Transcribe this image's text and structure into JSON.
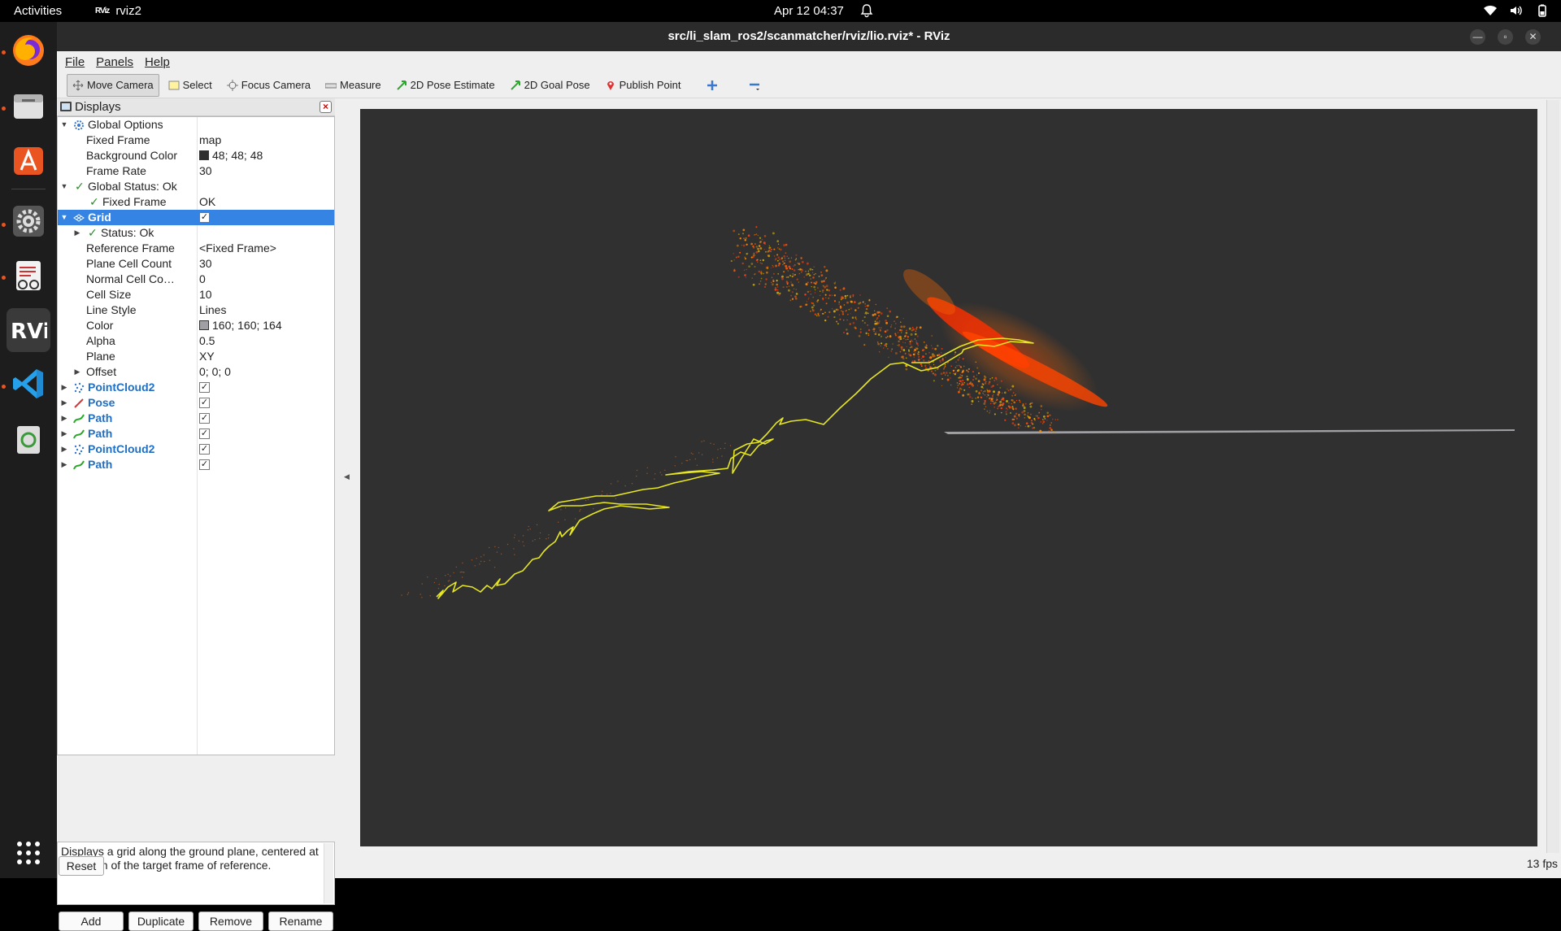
{
  "topbar": {
    "activities": "Activities",
    "app_name": "rviz2",
    "app_logo": "RViz",
    "clock": "Apr 12  04:37"
  },
  "window": {
    "title": "src/li_slam_ros2/scanmatcher/rviz/lio.rviz* - RViz"
  },
  "menu": {
    "file": "File",
    "panels": "Panels",
    "help": "Help"
  },
  "toolbar": {
    "move_camera": "Move Camera",
    "select": "Select",
    "focus_camera": "Focus Camera",
    "measure": "Measure",
    "pose_estimate": "2D Pose Estimate",
    "goal_pose": "2D Goal Pose",
    "publish_point": "Publish Point"
  },
  "displays": {
    "title": "Displays",
    "global_options": "Global Options",
    "fixed_frame_label": "Fixed Frame",
    "fixed_frame_value": "map",
    "bg_color_label": "Background Color",
    "bg_color_value": "48; 48; 48",
    "frame_rate_label": "Frame Rate",
    "frame_rate_value": "30",
    "global_status": "Global Status: Ok",
    "gs_fixed_frame_label": "Fixed Frame",
    "gs_fixed_frame_value": "OK",
    "grid": "Grid",
    "grid_status": "Status: Ok",
    "ref_frame_label": "Reference Frame",
    "ref_frame_value": "<Fixed Frame>",
    "plane_cell_label": "Plane Cell Count",
    "plane_cell_value": "30",
    "normal_cell_label": "Normal Cell Co…",
    "normal_cell_value": "0",
    "cell_size_label": "Cell Size",
    "cell_size_value": "10",
    "line_style_label": "Line Style",
    "line_style_value": "Lines",
    "color_label": "Color",
    "color_value": "160; 160; 164",
    "alpha_label": "Alpha",
    "alpha_value": "0.5",
    "plane_label": "Plane",
    "plane_value": "XY",
    "offset_label": "Offset",
    "offset_value": "0; 0; 0",
    "items": [
      "PointCloud2",
      "Pose",
      "Path",
      "Path",
      "PointCloud2",
      "Path"
    ],
    "description": "Displays a grid along the ground plane, centered at the origin of the target frame of reference."
  },
  "buttons": {
    "add": "Add",
    "duplicate": "Duplicate",
    "remove": "Remove",
    "rename": "Rename",
    "reset": "Reset"
  },
  "status": {
    "fps": "13 fps"
  },
  "colors": {
    "bg": "#303030",
    "path": "#e6e621",
    "cloud_orange": "#ff5a00",
    "cloud_yellow": "#d4b000",
    "selection": "#3584e4"
  }
}
